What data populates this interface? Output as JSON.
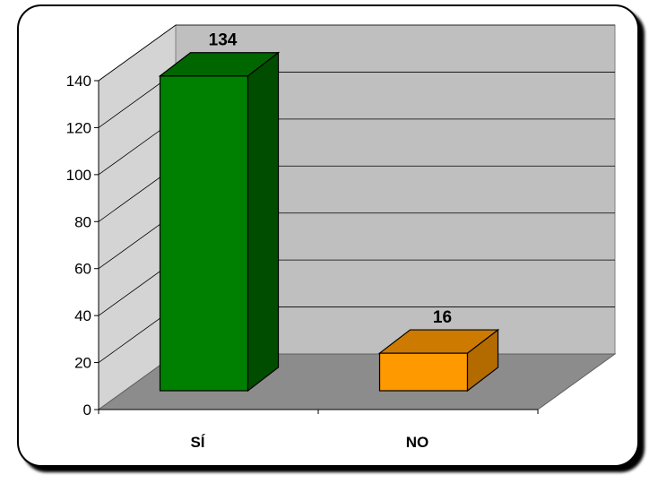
{
  "chart_data": {
    "type": "bar",
    "style": "3d",
    "categories": [
      "SÍ",
      "NO"
    ],
    "values": [
      134,
      16
    ],
    "data_labels": [
      "134",
      "16"
    ],
    "ylim": [
      0,
      140
    ],
    "yticks": [
      "0",
      "20",
      "40",
      "60",
      "80",
      "100",
      "120",
      "140"
    ],
    "grid": true,
    "legend": "none",
    "title": "",
    "xlabel": "",
    "ylabel": "",
    "colors": {
      "bars": [
        "#008000",
        "#FF9900"
      ],
      "bar_sides": [
        "#004d00",
        "#b36b00"
      ],
      "bar_tops": [
        "#006600",
        "#cc7a00"
      ],
      "back_wall": "#bfbfbf",
      "side_wall": "#d4d4d4",
      "floor": "#8c8c8c"
    }
  }
}
